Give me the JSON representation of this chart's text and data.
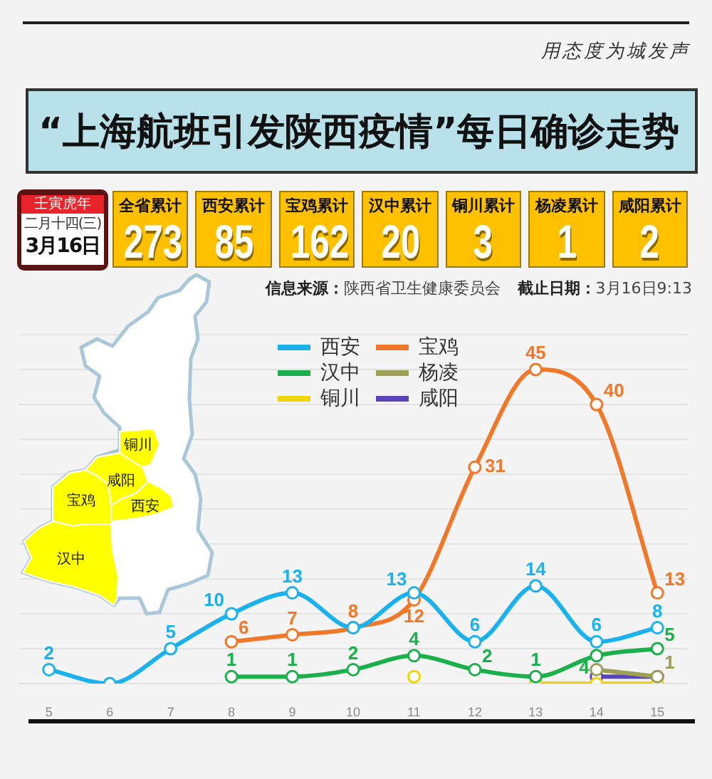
{
  "chart_data": [
    {
      "type": "other",
      "title": "“上海航班引发陕西疫情”每日确诊走势",
      "categories": [
        "全省累计",
        "西安累计",
        "宝鸡累计",
        "汉中累计",
        "铜川累计",
        "杨凌累计",
        "咸阳累计"
      ],
      "values": [
        273,
        85,
        162,
        20,
        3,
        1,
        2
      ],
      "data_labels": true,
      "color": "#ffc000",
      "annotations": [
        "用态度为城发声",
        "壬寅虎年",
        "二月十四(三)",
        "3月16日",
        "信息来源：陕西省卫生健康委员会",
        "截止日期：3月16日9:13"
      ]
    },
    {
      "type": "line",
      "categories": [
        "5",
        "6",
        "7",
        "8",
        "9",
        "10",
        "11",
        "12",
        "13",
        "14",
        "15"
      ],
      "ylim": [
        0,
        50
      ],
      "yticks": [
        {
          "value": 0,
          "label": null
        },
        {
          "value": 5,
          "label": null
        },
        {
          "value": 10,
          "label": null
        },
        {
          "value": 15,
          "label": null
        },
        {
          "value": 20,
          "label": null
        },
        {
          "value": 25,
          "label": null
        },
        {
          "value": 30,
          "label": null
        },
        {
          "value": 35,
          "label": null
        },
        {
          "value": 40,
          "label": null
        },
        {
          "value": 45,
          "label": null
        },
        {
          "value": 50,
          "label": null
        }
      ],
      "tick_labels": "x",
      "grid": "y",
      "legend": "top",
      "marker": "circle",
      "annotations": [
        "铜川",
        "咸阳",
        "宝鸡",
        "西安",
        "汉中"
      ],
      "series": [
        {
          "name": "西安",
          "color": "#1ab1ec",
          "values": [
            2,
            0,
            5,
            10,
            13,
            8,
            13,
            6,
            14,
            6,
            8
          ],
          "value_labels": [
            "2",
            null,
            "5",
            "10",
            "13",
            null,
            "13",
            "6",
            "14",
            "6",
            "8"
          ]
        },
        {
          "name": "宝鸡",
          "color": "#f0782a",
          "values": [
            null,
            null,
            null,
            6,
            7,
            8,
            12,
            31,
            45,
            40,
            13
          ],
          "value_labels": [
            null,
            null,
            null,
            "6",
            "7",
            "8",
            "12",
            "31",
            "45",
            "40",
            "13"
          ]
        },
        {
          "name": "汉中",
          "color": "#1bb04b",
          "values": [
            null,
            null,
            null,
            1,
            1,
            2,
            4,
            2,
            1,
            4,
            5
          ],
          "value_labels": [
            null,
            null,
            null,
            "1",
            "1",
            "2",
            "4",
            "2",
            "1",
            "4",
            "5"
          ]
        },
        {
          "name": "杨凌",
          "color": "#9c9f55",
          "values": [
            null,
            null,
            null,
            null,
            null,
            null,
            null,
            null,
            null,
            2,
            1
          ],
          "value_labels": [
            null,
            null,
            null,
            null,
            null,
            null,
            null,
            null,
            null,
            null,
            "1"
          ]
        },
        {
          "name": "铜川",
          "color": "#f0d400",
          "values": [
            null,
            null,
            null,
            null,
            null,
            null,
            1,
            null,
            0,
            0,
            0
          ]
        },
        {
          "name": "咸阳",
          "color": "#5a44b8",
          "values": [
            null,
            null,
            null,
            null,
            null,
            null,
            null,
            null,
            null,
            1,
            1
          ]
        }
      ]
    }
  ]
}
